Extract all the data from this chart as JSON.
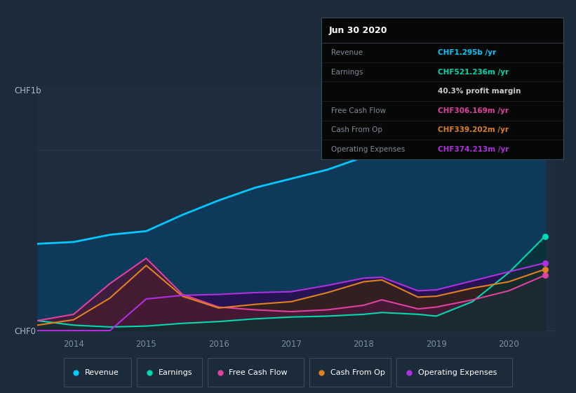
{
  "background_color": "#1c2b3a",
  "plot_bg_color": "#1e2d3d",
  "years": [
    2013.5,
    2014.0,
    2014.5,
    2015.0,
    2015.5,
    2016.0,
    2016.5,
    2017.0,
    2017.5,
    2018.0,
    2018.25,
    2018.75,
    2019.0,
    2019.5,
    2020.0,
    2020.5
  ],
  "revenue": [
    480,
    490,
    530,
    550,
    640,
    720,
    790,
    840,
    890,
    960,
    1010,
    1060,
    1080,
    1150,
    1230,
    1295
  ],
  "earnings": [
    55,
    30,
    20,
    25,
    40,
    50,
    65,
    75,
    80,
    90,
    100,
    90,
    80,
    160,
    320,
    521
  ],
  "free_cf": [
    55,
    90,
    260,
    400,
    200,
    130,
    115,
    105,
    115,
    140,
    170,
    120,
    130,
    170,
    220,
    306
  ],
  "cash_from_op": [
    30,
    60,
    180,
    360,
    190,
    125,
    145,
    160,
    210,
    270,
    280,
    185,
    190,
    235,
    270,
    339
  ],
  "op_expenses": [
    0,
    0,
    0,
    175,
    195,
    200,
    210,
    215,
    250,
    290,
    295,
    220,
    225,
    275,
    325,
    374
  ],
  "revenue_color": "#00c8ff",
  "earnings_color": "#00d8b0",
  "free_cf_color": "#e040a0",
  "cash_from_op_color": "#e08020",
  "op_expenses_color": "#b030e0",
  "revenue_fill_color": "#0d3a5c",
  "earnings_fill_color": "#0a3030",
  "free_cf_fill_color": "#4a1838",
  "cash_from_op_fill_color": "#3a2808",
  "op_expenses_fill_color": "#2a0e50",
  "xlabel_color": "#7a8fa0",
  "ylabel_color": "#aabbcc",
  "grid_color": "#243848",
  "xlim": [
    2013.5,
    2020.65
  ],
  "ylim": [
    -30,
    1350
  ],
  "ytick_values": [
    0,
    1000
  ],
  "ytick_labels": [
    "CHF0",
    "CHF1b"
  ],
  "xtick_values": [
    2014,
    2015,
    2016,
    2017,
    2018,
    2019,
    2020
  ],
  "tooltip_title": "Jun 30 2020",
  "tooltip_rows": [
    {
      "label": "Revenue",
      "value": "CHF1.295b /yr",
      "lcolor": "#888899",
      "vcolor": "#00c8ff"
    },
    {
      "label": "Earnings",
      "value": "CHF521.236m /yr",
      "lcolor": "#888899",
      "vcolor": "#00d8b0"
    },
    {
      "label": "",
      "value": "40.3% profit margin",
      "lcolor": "#888899",
      "vcolor": "#cccccc"
    },
    {
      "label": "Free Cash Flow",
      "value": "CHF306.169m /yr",
      "lcolor": "#888899",
      "vcolor": "#e040a0"
    },
    {
      "label": "Cash From Op",
      "value": "CHF339.202m /yr",
      "lcolor": "#888899",
      "vcolor": "#e08020"
    },
    {
      "label": "Operating Expenses",
      "value": "CHF374.213m /yr",
      "lcolor": "#888899",
      "vcolor": "#b030e0"
    }
  ],
  "legend_labels": [
    "Revenue",
    "Earnings",
    "Free Cash Flow",
    "Cash From Op",
    "Operating Expenses"
  ],
  "legend_colors": [
    "#00c8ff",
    "#00d8b0",
    "#e040a0",
    "#e08020",
    "#b030e0"
  ]
}
